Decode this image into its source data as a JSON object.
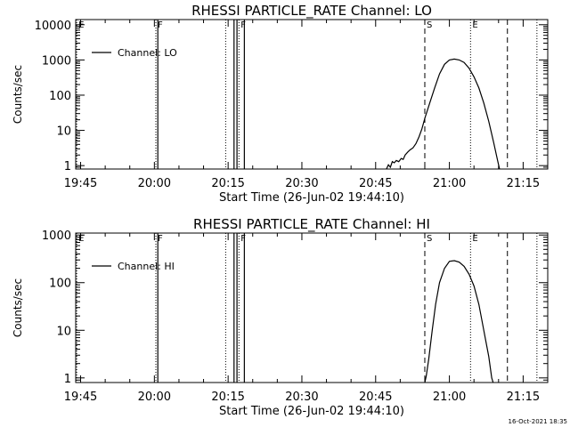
{
  "footer": {
    "timestamp": "16-Oct-2021 18:35"
  },
  "chart_data": [
    {
      "type": "line",
      "title": "RHESSI PARTICLE_RATE Channel: LO",
      "xlabel": "Start Time (26-Jun-02 19:44:10)",
      "ylabel": "Counts/sec",
      "xlim_minutes": [
        0,
        96
      ],
      "ylim_log": [
        0.8,
        14000
      ],
      "x_ticks": [
        {
          "t": 1,
          "label": "19:45"
        },
        {
          "t": 16,
          "label": "20:00"
        },
        {
          "t": 31,
          "label": "20:15"
        },
        {
          "t": 46,
          "label": "20:30"
        },
        {
          "t": 61,
          "label": "20:45"
        },
        {
          "t": 76,
          "label": "21:00"
        },
        {
          "t": 91,
          "label": "21:15"
        }
      ],
      "y_ticks": [
        {
          "v": 1,
          "label": "1"
        },
        {
          "v": 10,
          "label": "10"
        },
        {
          "v": 100,
          "label": "100"
        },
        {
          "v": 1000,
          "label": "1000"
        },
        {
          "v": 10000,
          "label": "10000"
        }
      ],
      "legend": {
        "label": "Channel: LO",
        "position": "top-left"
      },
      "markers": [
        {
          "t": 0.2,
          "style": "dotted",
          "label": "E"
        },
        {
          "t": 16.3,
          "style": "dotted",
          "label": "F"
        },
        {
          "t": 30.5,
          "style": "dotted",
          "label": ""
        },
        {
          "t": 33.2,
          "style": "dotted",
          "label": "F"
        },
        {
          "t": 71.0,
          "style": "dashed",
          "label": "S"
        },
        {
          "t": 80.3,
          "style": "dotted",
          "label": "E"
        },
        {
          "t": 87.8,
          "style": "dashed",
          "label": ""
        },
        {
          "t": 93.8,
          "style": "dotted",
          "label": ""
        }
      ],
      "gap_lines": [
        16.7,
        32.2,
        32.8,
        34.3
      ],
      "series": [
        {
          "name": "Channel: LO",
          "points": [
            [
              63.2,
              0.8
            ],
            [
              63.6,
              1.05
            ],
            [
              64.0,
              0.9
            ],
            [
              64.4,
              1.3
            ],
            [
              64.8,
              1.2
            ],
            [
              65.2,
              1.4
            ],
            [
              65.7,
              1.3
            ],
            [
              66.2,
              1.6
            ],
            [
              66.6,
              1.5
            ],
            [
              67.0,
              2.0
            ],
            [
              67.5,
              2.4
            ],
            [
              68.0,
              2.8
            ],
            [
              68.6,
              3.2
            ],
            [
              69.2,
              4.2
            ],
            [
              69.8,
              6.5
            ],
            [
              70.4,
              11
            ],
            [
              71.0,
              22
            ],
            [
              72.0,
              60
            ],
            [
              73.0,
              160
            ],
            [
              74.0,
              400
            ],
            [
              75.0,
              750
            ],
            [
              76.0,
              1000
            ],
            [
              77.0,
              1060
            ],
            [
              78.0,
              1000
            ],
            [
              79.0,
              850
            ],
            [
              80.0,
              580
            ],
            [
              81.0,
              330
            ],
            [
              82.0,
              160
            ],
            [
              83.0,
              60
            ],
            [
              84.0,
              18
            ],
            [
              85.0,
              4.5
            ],
            [
              85.8,
              1.4
            ],
            [
              86.2,
              0.8
            ]
          ]
        }
      ]
    },
    {
      "type": "line",
      "title": "RHESSI PARTICLE_RATE Channel: HI",
      "xlabel": "Start Time (26-Jun-02 19:44:10)",
      "ylabel": "Counts/sec",
      "xlim_minutes": [
        0,
        96
      ],
      "ylim_log": [
        0.8,
        1100
      ],
      "x_ticks": [
        {
          "t": 1,
          "label": "19:45"
        },
        {
          "t": 16,
          "label": "20:00"
        },
        {
          "t": 31,
          "label": "20:15"
        },
        {
          "t": 46,
          "label": "20:30"
        },
        {
          "t": 61,
          "label": "20:45"
        },
        {
          "t": 76,
          "label": "21:00"
        },
        {
          "t": 91,
          "label": "21:15"
        }
      ],
      "y_ticks": [
        {
          "v": 1,
          "label": "1"
        },
        {
          "v": 10,
          "label": "10"
        },
        {
          "v": 100,
          "label": "100"
        },
        {
          "v": 1000,
          "label": "1000"
        }
      ],
      "legend": {
        "label": "Channel: HI",
        "position": "top-left"
      },
      "markers": [
        {
          "t": 0.2,
          "style": "dotted",
          "label": "E"
        },
        {
          "t": 16.3,
          "style": "dotted",
          "label": "F"
        },
        {
          "t": 30.5,
          "style": "dotted",
          "label": ""
        },
        {
          "t": 33.2,
          "style": "dotted",
          "label": "F"
        },
        {
          "t": 71.0,
          "style": "dashed",
          "label": "S"
        },
        {
          "t": 80.3,
          "style": "dotted",
          "label": "E"
        },
        {
          "t": 87.8,
          "style": "dashed",
          "label": ""
        },
        {
          "t": 93.8,
          "style": "dotted",
          "label": ""
        }
      ],
      "gap_lines": [
        16.7,
        32.2,
        32.8,
        34.3
      ],
      "series": [
        {
          "name": "Channel: HI",
          "points": [
            [
              71.0,
              0.8
            ],
            [
              71.3,
              1.1
            ],
            [
              71.8,
              2.5
            ],
            [
              72.5,
              10
            ],
            [
              73.2,
              35
            ],
            [
              74.0,
              100
            ],
            [
              75.0,
              200
            ],
            [
              76.0,
              280
            ],
            [
              77.0,
              290
            ],
            [
              78.0,
              270
            ],
            [
              79.0,
              220
            ],
            [
              80.0,
              150
            ],
            [
              81.0,
              85
            ],
            [
              82.0,
              35
            ],
            [
              83.0,
              10
            ],
            [
              84.0,
              2.8
            ],
            [
              84.6,
              1.0
            ],
            [
              84.9,
              0.8
            ]
          ]
        }
      ]
    }
  ]
}
